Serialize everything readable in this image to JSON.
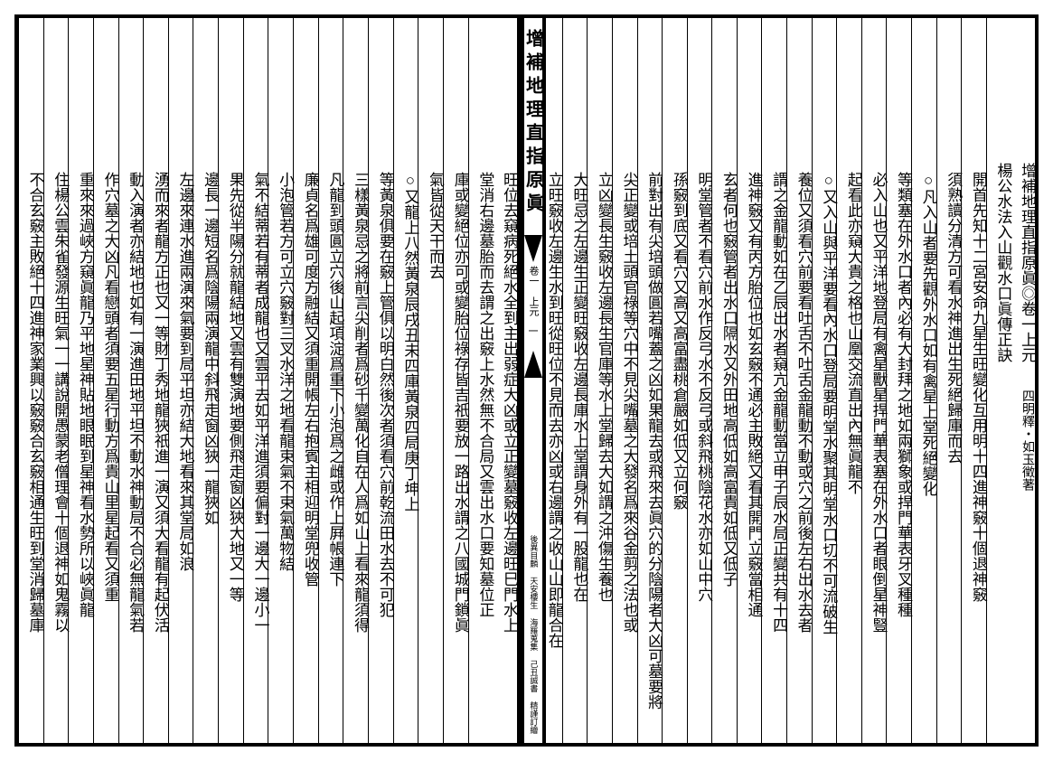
{
  "spine": {
    "title": "增補地理直指原眞",
    "volume": "卷一 上元",
    "page": "一",
    "bottom": "天安樓生 海羅蒐集 己丑誠書 精謹訂繪",
    "bottom2": "後異目麟"
  },
  "right_page": {
    "columns": [
      {
        "cls": "header1",
        "text": "增補地理直指原眞◎卷一上元　四明釋・如玉徵著"
      },
      {
        "cls": "header2",
        "text": "楊公水法入山觀水口眞傳正訣"
      },
      {
        "cls": "body",
        "text": "開首先知十二宮安命九星生旺變化互用明十四進神竅十個退神竅"
      },
      {
        "cls": "body",
        "text": "須熟讀分清方可看水神進出生死絕歸庫而去"
      },
      {
        "cls": "body",
        "text": "○凡入山者要先觀外水口如有禽星上堂死絕變化"
      },
      {
        "cls": "body",
        "text": "等類塞在外水口者內必有大封拜之地如兩獅象或捍門華表牙叉種種"
      },
      {
        "cls": "body",
        "text": "必入山也又平洋地登局有禽星獸星捍門華表塞在外水口者眼倒星神豎"
      },
      {
        "cls": "body",
        "text": "起看此亦窺大貴之格也山凰交流直出內無眞龍不"
      },
      {
        "cls": "body",
        "text": "○又入山與平洋要看內水口登局要明堂水聚其明堂水口切不可流破生"
      },
      {
        "cls": "body",
        "text": "養位又須看穴前要看吐舌不吐舌金龍動不動或穴之前後左右出水去者"
      },
      {
        "cls": "body",
        "text": "謂之金龍動如在乙辰出水者窺亢金龍動當立申子辰水局正變共有十四"
      },
      {
        "cls": "body",
        "text": "進神竅又有丙方胎位也如玄竅不通必主敗絕又看其開門立竅當相通"
      },
      {
        "cls": "body",
        "text": "玄者何也竅管者出水口隔水又外田地高低如高富貴如低又低子"
      },
      {
        "cls": "body",
        "text": "明堂管者不看穴前水作反弓水不反弓或斜飛桃陰花水亦如山中穴"
      },
      {
        "cls": "body",
        "text": "孫竅到底又看穴又高又高富盡桃倉嚴如低又立何竅"
      },
      {
        "cls": "body",
        "text": "前對出有尖培頭做圓若嘴蓋之凶如果龍去或飛來去眞穴的分陰陽者大凶可墓要將"
      },
      {
        "cls": "body",
        "text": "尖正變或培土頭官祿等穴中不見尖嘴墓之大發名爲來谷金剪之法也或"
      },
      {
        "cls": "body",
        "text": "立凶變長生竅收左邊長生官庫等水上堂歸去大如謂之沖傷生養也"
      },
      {
        "cls": "body",
        "text": "大旺忌之左邊生正變旺竅收左邊長庫水上堂謂身外有一股龍也在"
      },
      {
        "cls": "body",
        "text": "立旺竅收左邊生水到旺從旺位不見而去亦凶或右邊謂之收山山即龍合在"
      }
    ]
  },
  "left_page": {
    "columns": [
      {
        "cls": "body",
        "text": "旺位去窺病死絕水全到主出弱症大凶或立正變墓竅收左邊旺巳門水上"
      },
      {
        "cls": "body",
        "text": "堂消右邊墓胎而去謂之出竅上水然無不合局又雲出水口要知墓位正"
      },
      {
        "cls": "body",
        "text": "庫或變絕位亦可或變胎位祿存皆吉祇要放一路出水謂之八國城門鎖眞"
      },
      {
        "cls": "body",
        "text": "氣皆從天干而去"
      },
      {
        "cls": "body",
        "text": "○又龍上八然黃泉辰戌丑未四庫黃泉四局庚丁坤上"
      },
      {
        "cls": "body",
        "text": "等黃泉俱要在竅上管俱以明白然後次者須看穴前乾流田水去不可犯"
      },
      {
        "cls": "body",
        "text": "三樣黃泉忌之將前言尖削者爲砂千變萬化自在人爲如山上看來龍須得"
      },
      {
        "cls": "body",
        "text": "凡龍到頭圓立穴後山起項淀爲重下小泡爲之雌或作上屛帳連下"
      },
      {
        "cls": "body",
        "text": "廉貞名爲雄可度方融結又須重開帳左右抱賓主相迎明堂兜收管"
      },
      {
        "cls": "body",
        "text": "小泡管若方可立穴竅對三叉水洋之地看龍束氣不束氣萬物結"
      },
      {
        "cls": "body",
        "text": "氣不結蒂若有蒂者成龍也又雲平去如平洋進須要偏對一邊大一邊小一"
      },
      {
        "cls": "body",
        "text": "果先從半陽分就龍結地又雲有雙演地要側飛走窗凶狹大地又一等"
      },
      {
        "cls": "body",
        "text": "邊長一邊短名爲陰陽兩演龍中斜飛走窗凶狹一龍狹如"
      },
      {
        "cls": "body",
        "text": "左邊來連水進兩演來氣要到局平坦亦結大地看來其堂局如浪"
      },
      {
        "cls": "body",
        "text": "湧而來者龍方正也又一等財丁秀地龍狹祇進一演又須大看龍有起伏活"
      },
      {
        "cls": "body",
        "text": "動入演者亦結地也如有一演進田地平坦不動水神動局不合必無龍氣若"
      },
      {
        "cls": "body",
        "text": "作穴墓之大凶凡看戀頭者須要五星行動方爲貴山里星起看又須重"
      },
      {
        "cls": "body",
        "text": "重來來過峽方窺眞龍乃平地星神貼地眼眠到星神看水勢所以峽眞龍"
      },
      {
        "cls": "body",
        "text": "住楊公雲朱雀發源生旺氣一一講說開愚蒙老僧理會十個退神如鬼霧以"
      },
      {
        "cls": "body",
        "text": "不合玄竅主敗絕十四進神家業興以竅竅合玄竅相通生旺到堂消歸墓庫"
      }
    ]
  }
}
